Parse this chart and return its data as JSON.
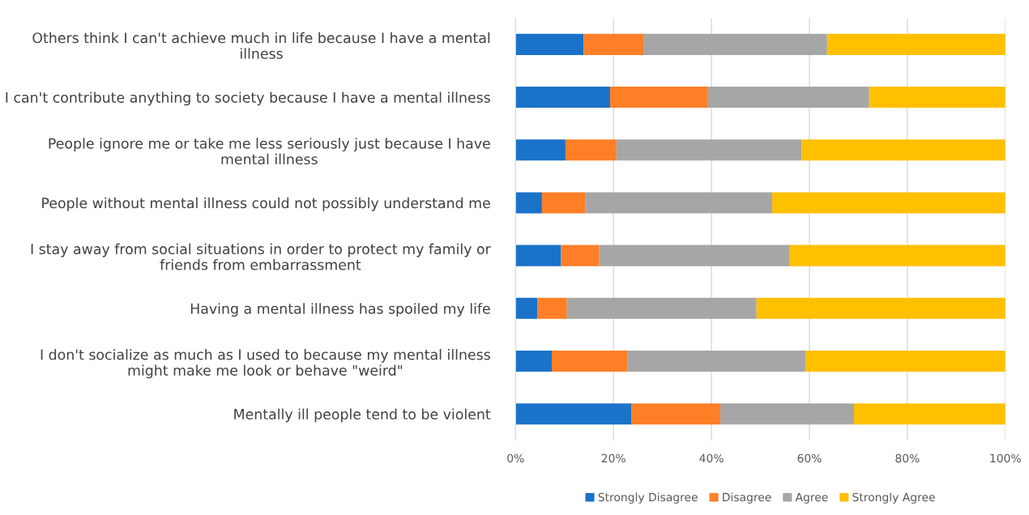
{
  "chart_data": {
    "type": "bar",
    "orientation": "horizontal",
    "stacked": true,
    "categories": [
      "Others think I can't achieve much in life because I have a mental illness",
      "I can't contribute anything to society because I have a mental illness",
      "People ignore me or take me less seriously just because I have mental illness",
      "People without mental illness could not possibly understand me",
      "I stay away from social situations in order to protect my family or friends from embarrassment",
      "Having a mental illness has spoiled my life",
      "I don't socialize as much as I used to because my mental illness might make me look or behave \"weird\"",
      "Mentally ill people tend to be violent"
    ],
    "series": [
      {
        "name": "Strongly Disagree",
        "color": "#1a73c8",
        "values": [
          13.9,
          19.3,
          10.2,
          5.4,
          9.3,
          4.5,
          7.4,
          23.7
        ]
      },
      {
        "name": "Disagree",
        "color": "#ff7f27",
        "values": [
          12.2,
          20.0,
          10.4,
          8.8,
          7.8,
          6.0,
          15.4,
          18.1
        ]
      },
      {
        "name": "Agree",
        "color": "#a6a6a6",
        "values": [
          37.5,
          32.9,
          37.8,
          38.2,
          38.9,
          38.7,
          36.4,
          27.3
        ]
      },
      {
        "name": "Strongly Agree",
        "color": "#ffc000",
        "values": [
          36.4,
          27.8,
          41.6,
          47.6,
          44.0,
          50.8,
          40.8,
          30.9
        ]
      }
    ],
    "xlim": [
      0,
      100
    ],
    "xticks": [
      {
        "value": 0,
        "label": "0%"
      },
      {
        "value": 20,
        "label": "20%"
      },
      {
        "value": 40,
        "label": "40%"
      },
      {
        "value": 60,
        "label": "60%"
      },
      {
        "value": 80,
        "label": "80%"
      },
      {
        "value": 100,
        "label": "100%"
      }
    ],
    "grid": "x",
    "legend": "bottom"
  }
}
